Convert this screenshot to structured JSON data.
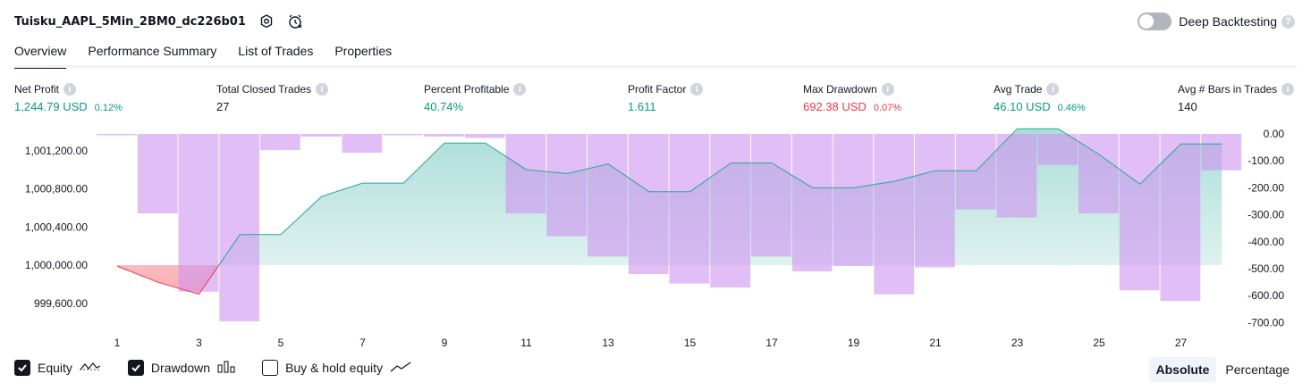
{
  "header": {
    "title": "Tuisku_AAPL_5Min_2BM0_dc226b01"
  },
  "deep_backtesting": {
    "label": "Deep Backtesting",
    "help": "?"
  },
  "tabs": [
    {
      "label": "Overview"
    },
    {
      "label": "Performance Summary"
    },
    {
      "label": "List of Trades"
    },
    {
      "label": "Properties"
    }
  ],
  "metrics": [
    {
      "label": "Net Profit",
      "value": "1,244.79 USD",
      "pct": "0.12%",
      "color": "#089981"
    },
    {
      "label": "Total Closed Trades",
      "value": "27",
      "pct": "",
      "color": "#131722"
    },
    {
      "label": "Percent Profitable",
      "value": "40.74%",
      "pct": "",
      "color": "#089981"
    },
    {
      "label": "Profit Factor",
      "value": "1.611",
      "pct": "",
      "color": "#089981"
    },
    {
      "label": "Max Drawdown",
      "value": "692.38 USD",
      "pct": "0.07%",
      "color": "#f23645"
    },
    {
      "label": "Avg Trade",
      "value": "46.10 USD",
      "pct": "0.46%",
      "color": "#089981"
    },
    {
      "label": "Avg # Bars in Trades",
      "value": "140",
      "pct": "",
      "color": "#131722"
    }
  ],
  "chart_data": {
    "type": "line+bar",
    "x_ticks": [
      "1",
      "3",
      "5",
      "7",
      "9",
      "11",
      "13",
      "15",
      "17",
      "19",
      "21",
      "23",
      "25",
      "27"
    ],
    "left_axis": {
      "ticks": [
        "1,001,200.00",
        "1,000,800.00",
        "1,000,400.00",
        "1,000,000.00",
        "999,600.00"
      ],
      "tick_values": [
        1001200,
        1000800,
        1000400,
        1000000,
        999600
      ]
    },
    "right_axis": {
      "ticks": [
        "0.00",
        "-100.00",
        "-200.00",
        "-300.00",
        "-400.00",
        "-500.00",
        "-600.00",
        "-700.00"
      ],
      "tick_values": [
        0,
        -100,
        -200,
        -300,
        -400,
        -500,
        -600,
        -700
      ]
    },
    "equity_baseline": 1000000,
    "equity": [
      999990,
      999820,
      999695,
      1000320,
      1000320,
      1000720,
      1000860,
      1000860,
      1001280,
      1001280,
      1001000,
      1000960,
      1001060,
      1000770,
      1000770,
      1001070,
      1001070,
      1000810,
      1000810,
      1000880,
      1000990,
      1000990,
      1001430,
      1001430,
      1001160,
      1000850,
      1001270,
      1001270
    ],
    "drawdown": [
      0,
      -295,
      -585,
      -695,
      -60,
      -10,
      -70,
      -5,
      -10,
      -15,
      -295,
      -380,
      -455,
      -520,
      -555,
      -570,
      -455,
      -510,
      -490,
      -595,
      -495,
      -280,
      -310,
      -115,
      -295,
      -580,
      -620,
      -135
    ],
    "equity_colors": {
      "positive": "#26a69a",
      "negative": "#f23645"
    },
    "drawdown_color": "#ce93f0"
  },
  "footer": {
    "equity_label": "Equity",
    "drawdown_label": "Drawdown",
    "buyhold_label": "Buy & hold equity",
    "absolute_label": "Absolute",
    "percentage_label": "Percentage"
  }
}
